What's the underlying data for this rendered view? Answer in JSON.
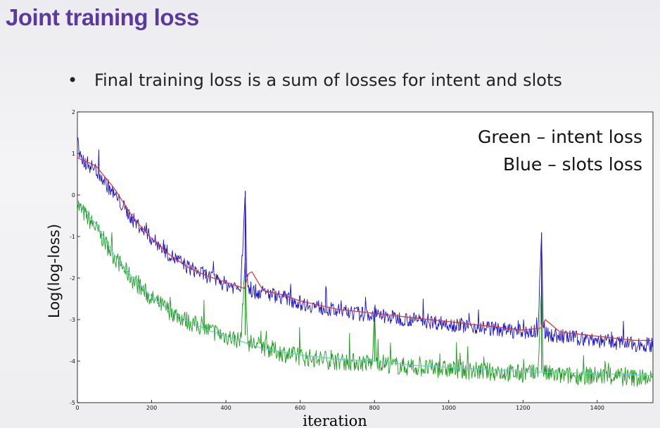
{
  "slide": {
    "title": "Joint training loss",
    "bullet": "Final training loss is a sum of losses for intent and slots"
  },
  "chart_data": {
    "type": "line",
    "title": "",
    "xlabel": "iteration",
    "ylabel": "Log(log-loss)",
    "xlim": [
      0,
      1550
    ],
    "ylim": [
      -5,
      2
    ],
    "xticks": [
      0,
      200,
      400,
      600,
      800,
      1000,
      1200,
      1400
    ],
    "yticks": [
      2,
      1,
      0,
      -1,
      -2,
      -3,
      -4,
      -5
    ],
    "legend": [
      "Green – intent loss",
      "Blue – slots loss"
    ],
    "legend_position": "top-right",
    "series": [
      {
        "name": "slots loss (raw)",
        "color": "#1a12c8",
        "x": [
          0,
          5,
          50,
          100,
          150,
          200,
          250,
          300,
          350,
          400,
          440,
          452,
          456,
          460,
          500,
          550,
          600,
          650,
          700,
          750,
          800,
          850,
          900,
          950,
          1000,
          1050,
          1100,
          1150,
          1200,
          1240,
          1250,
          1254,
          1260,
          1300,
          1350,
          1400,
          1450,
          1500,
          1550
        ],
        "y": [
          1.4,
          0.9,
          0.6,
          0.0,
          -0.6,
          -1.05,
          -1.45,
          -1.75,
          -1.95,
          -2.15,
          -2.25,
          0.1,
          -1.9,
          -2.3,
          -2.35,
          -2.45,
          -2.6,
          -2.7,
          -2.8,
          -2.85,
          -2.9,
          -2.95,
          -3.0,
          -3.05,
          -3.1,
          -3.15,
          -3.2,
          -3.25,
          -3.3,
          -3.3,
          -0.9,
          -3.0,
          -3.35,
          -3.4,
          -3.45,
          -3.5,
          -3.55,
          -3.6,
          -3.6
        ]
      },
      {
        "name": "slots loss (smoothed)",
        "color": "#e03030",
        "x": [
          0,
          50,
          100,
          150,
          200,
          250,
          300,
          350,
          400,
          450,
          460,
          470,
          500,
          550,
          600,
          700,
          800,
          900,
          1000,
          1100,
          1200,
          1250,
          1260,
          1300,
          1400,
          1500,
          1550
        ],
        "y": [
          0.9,
          0.7,
          0.15,
          -0.55,
          -1.05,
          -1.45,
          -1.75,
          -1.95,
          -2.1,
          -2.25,
          -1.9,
          -1.85,
          -2.3,
          -2.4,
          -2.55,
          -2.75,
          -2.85,
          -2.95,
          -3.05,
          -3.15,
          -3.25,
          -3.2,
          -3.0,
          -3.3,
          -3.4,
          -3.5,
          -3.5
        ]
      },
      {
        "name": "intent loss (raw)",
        "color": "#1e9a1e",
        "x": [
          0,
          5,
          50,
          100,
          150,
          200,
          250,
          300,
          350,
          400,
          440,
          452,
          456,
          460,
          500,
          550,
          600,
          700,
          795,
          800,
          805,
          850,
          900,
          1000,
          1100,
          1200,
          1240,
          1250,
          1254,
          1260,
          1300,
          1400,
          1500,
          1550
        ],
        "y": [
          -0.15,
          -0.3,
          -0.8,
          -1.5,
          -2.05,
          -2.5,
          -2.8,
          -3.05,
          -3.25,
          -3.4,
          -3.5,
          -1.5,
          -3.2,
          -3.55,
          -3.65,
          -3.8,
          -3.9,
          -4.0,
          -4.05,
          -2.7,
          -4.0,
          -4.1,
          -4.15,
          -4.2,
          -4.25,
          -4.3,
          -4.3,
          -2.2,
          -4.2,
          -4.3,
          -4.35,
          -4.35,
          -4.4,
          -4.4
        ]
      },
      {
        "name": "intent loss (smoothed)",
        "color": "#5fd0c8",
        "x": [
          0,
          50,
          100,
          150,
          200,
          250,
          300,
          350,
          400,
          450,
          500,
          600,
          700,
          800,
          900,
          1000,
          1200,
          1400,
          1550
        ],
        "y": [
          -0.2,
          -0.7,
          -1.45,
          -2.0,
          -2.45,
          -2.8,
          -3.05,
          -3.25,
          -3.4,
          -3.55,
          -3.7,
          -3.85,
          -3.95,
          -4.0,
          -4.1,
          -4.15,
          -4.25,
          -4.3,
          -4.35
        ]
      }
    ]
  }
}
